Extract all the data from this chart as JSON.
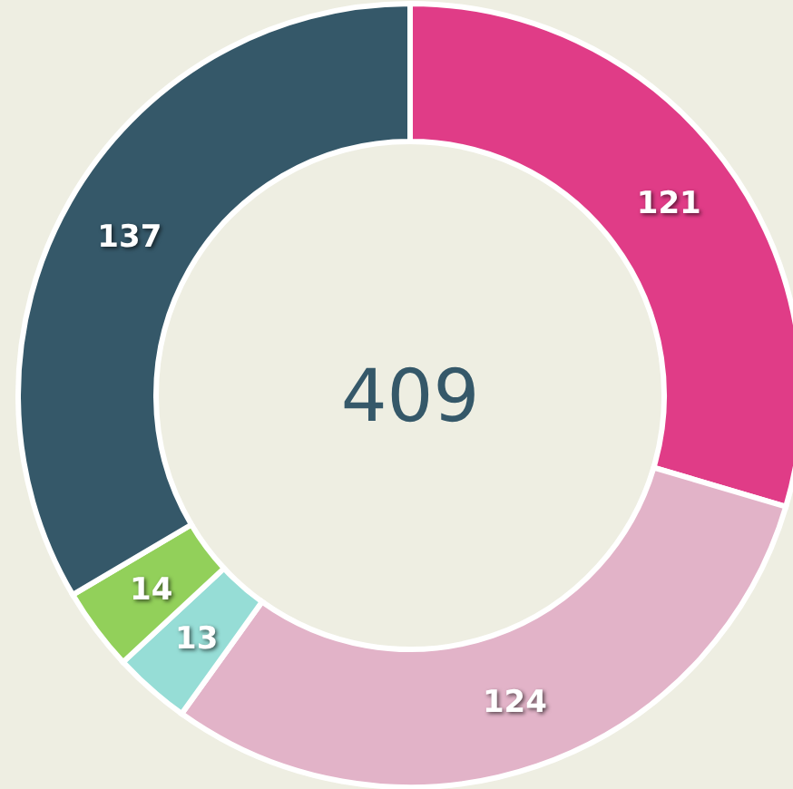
{
  "chart_data": {
    "type": "donut",
    "categories": [
      null,
      null,
      null,
      null,
      null
    ],
    "values": [
      121,
      124,
      13,
      14,
      137
    ],
    "colors": [
      "#e03c87",
      "#e2b3c8",
      "#96ddd6",
      "#92d05a",
      "#355869"
    ],
    "data_labels": true,
    "annotations": [
      "409"
    ]
  }
}
